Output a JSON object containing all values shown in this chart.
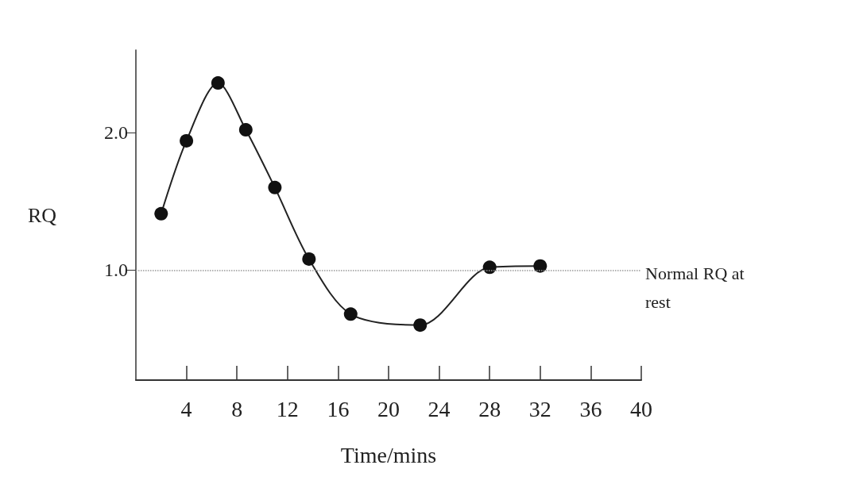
{
  "chart_data": {
    "type": "line",
    "xlabel": "Time/mins",
    "ylabel": "RQ",
    "xlim": [
      0,
      40
    ],
    "xticks": [
      4,
      8,
      12,
      16,
      20,
      24,
      28,
      32,
      36,
      40
    ],
    "ylim": [
      0.2,
      2.6
    ],
    "yticks": [
      {
        "value": 1,
        "label": "1.0"
      },
      {
        "value": 2,
        "label": "2.0"
      }
    ],
    "series": [
      {
        "color": "#222222",
        "x": [
          2,
          4,
          6.5,
          8.7,
          11,
          13.7,
          17,
          22.5,
          28,
          32
        ],
        "values": [
          1.41,
          1.94,
          2.36,
          2.02,
          1.6,
          1.08,
          0.68,
          0.6,
          1.02,
          1.03
        ]
      }
    ],
    "ref_lines": [
      {
        "axis": "y",
        "value": 1,
        "label": "Normal RQ at rest",
        "color": "#999999",
        "line_style": "dotted"
      }
    ],
    "marker": "circle",
    "grid": false
  }
}
